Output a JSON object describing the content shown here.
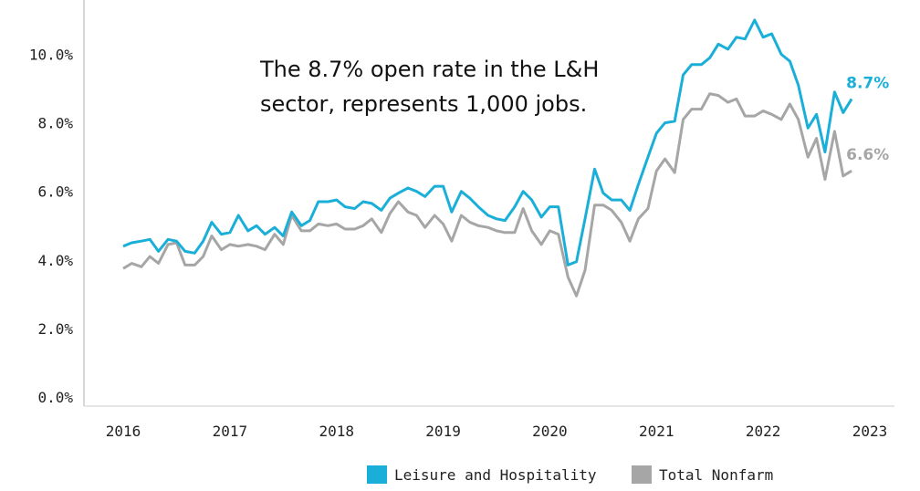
{
  "chart_data": {
    "type": "line",
    "title": "",
    "xlabel": "",
    "ylabel": "",
    "ylim": [
      0,
      11
    ],
    "xlim": [
      2016,
      2023
    ],
    "y_ticks": [
      "0.0%",
      "2.0%",
      "4.0%",
      "6.0%",
      "8.0%",
      "10.0%"
    ],
    "y_tick_values": [
      0,
      2,
      4,
      6,
      8,
      10
    ],
    "x_ticks": [
      "2016",
      "2017",
      "2018",
      "2019",
      "2020",
      "2021",
      "2022",
      "2023"
    ],
    "x_tick_values": [
      2016,
      2017,
      2018,
      2019,
      2020,
      2021,
      2022,
      2023
    ],
    "annotation": {
      "line1": "The 8.7% open rate in the L&H",
      "line2": "sector, represents 1,000 jobs."
    },
    "colors": {
      "leisure": "#1aafd8",
      "nonfarm": "#a6a6a6",
      "axis": "#cccccc"
    },
    "series": [
      {
        "name": "Leisure and Hospitality",
        "end_label": "8.7%",
        "values": [
          [
            2016.0,
            4.4
          ],
          [
            2016.08,
            4.5
          ],
          [
            2016.17,
            4.55
          ],
          [
            2016.25,
            4.6
          ],
          [
            2016.33,
            4.25
          ],
          [
            2016.42,
            4.6
          ],
          [
            2016.5,
            4.55
          ],
          [
            2016.58,
            4.25
          ],
          [
            2016.67,
            4.2
          ],
          [
            2016.75,
            4.55
          ],
          [
            2016.83,
            5.1
          ],
          [
            2016.92,
            4.75
          ],
          [
            2017.0,
            4.8
          ],
          [
            2017.08,
            5.3
          ],
          [
            2017.17,
            4.85
          ],
          [
            2017.25,
            5.0
          ],
          [
            2017.33,
            4.75
          ],
          [
            2017.42,
            4.95
          ],
          [
            2017.5,
            4.7
          ],
          [
            2017.58,
            5.4
          ],
          [
            2017.67,
            5.0
          ],
          [
            2017.75,
            5.15
          ],
          [
            2017.83,
            5.7
          ],
          [
            2017.92,
            5.7
          ],
          [
            2018.0,
            5.75
          ],
          [
            2018.08,
            5.55
          ],
          [
            2018.17,
            5.5
          ],
          [
            2018.25,
            5.7
          ],
          [
            2018.33,
            5.65
          ],
          [
            2018.42,
            5.45
          ],
          [
            2018.5,
            5.8
          ],
          [
            2018.58,
            5.95
          ],
          [
            2018.67,
            6.1
          ],
          [
            2018.75,
            6.0
          ],
          [
            2018.83,
            5.85
          ],
          [
            2018.92,
            6.15
          ],
          [
            2019.0,
            6.15
          ],
          [
            2019.08,
            5.4
          ],
          [
            2019.17,
            6.0
          ],
          [
            2019.25,
            5.8
          ],
          [
            2019.33,
            5.55
          ],
          [
            2019.42,
            5.3
          ],
          [
            2019.5,
            5.2
          ],
          [
            2019.58,
            5.15
          ],
          [
            2019.67,
            5.55
          ],
          [
            2019.75,
            6.0
          ],
          [
            2019.83,
            5.75
          ],
          [
            2019.92,
            5.25
          ],
          [
            2020.0,
            5.55
          ],
          [
            2020.08,
            5.55
          ],
          [
            2020.17,
            3.85
          ],
          [
            2020.25,
            3.95
          ],
          [
            2020.33,
            5.2
          ],
          [
            2020.42,
            6.65
          ],
          [
            2020.5,
            5.95
          ],
          [
            2020.58,
            5.75
          ],
          [
            2020.67,
            5.75
          ],
          [
            2020.75,
            5.45
          ],
          [
            2020.83,
            6.2
          ],
          [
            2020.92,
            7.0
          ],
          [
            2021.0,
            7.7
          ],
          [
            2021.08,
            8.0
          ],
          [
            2021.17,
            8.05
          ],
          [
            2021.25,
            9.4
          ],
          [
            2021.33,
            9.7
          ],
          [
            2021.42,
            9.7
          ],
          [
            2021.5,
            9.9
          ],
          [
            2021.58,
            10.3
          ],
          [
            2021.67,
            10.15
          ],
          [
            2021.75,
            10.5
          ],
          [
            2021.83,
            10.45
          ],
          [
            2021.92,
            11.0
          ],
          [
            2022.0,
            10.5
          ],
          [
            2022.08,
            10.6
          ],
          [
            2022.17,
            10.0
          ],
          [
            2022.25,
            9.8
          ],
          [
            2022.33,
            9.1
          ],
          [
            2022.42,
            7.85
          ],
          [
            2022.5,
            8.25
          ],
          [
            2022.58,
            7.15
          ],
          [
            2022.67,
            8.9
          ],
          [
            2022.75,
            8.3
          ],
          [
            2022.83,
            8.7
          ]
        ]
      },
      {
        "name": "Total Nonfarm",
        "end_label": "6.6%",
        "values": [
          [
            2016.0,
            3.75
          ],
          [
            2016.08,
            3.9
          ],
          [
            2016.17,
            3.8
          ],
          [
            2016.25,
            4.1
          ],
          [
            2016.33,
            3.9
          ],
          [
            2016.42,
            4.45
          ],
          [
            2016.5,
            4.5
          ],
          [
            2016.58,
            3.85
          ],
          [
            2016.67,
            3.85
          ],
          [
            2016.75,
            4.1
          ],
          [
            2016.83,
            4.7
          ],
          [
            2016.92,
            4.3
          ],
          [
            2017.0,
            4.45
          ],
          [
            2017.08,
            4.4
          ],
          [
            2017.17,
            4.45
          ],
          [
            2017.25,
            4.4
          ],
          [
            2017.33,
            4.3
          ],
          [
            2017.42,
            4.75
          ],
          [
            2017.5,
            4.45
          ],
          [
            2017.58,
            5.3
          ],
          [
            2017.67,
            4.85
          ],
          [
            2017.75,
            4.85
          ],
          [
            2017.83,
            5.05
          ],
          [
            2017.92,
            5.0
          ],
          [
            2018.0,
            5.05
          ],
          [
            2018.08,
            4.9
          ],
          [
            2018.17,
            4.9
          ],
          [
            2018.25,
            5.0
          ],
          [
            2018.33,
            5.2
          ],
          [
            2018.42,
            4.8
          ],
          [
            2018.5,
            5.35
          ],
          [
            2018.58,
            5.7
          ],
          [
            2018.67,
            5.4
          ],
          [
            2018.75,
            5.3
          ],
          [
            2018.83,
            4.95
          ],
          [
            2018.92,
            5.3
          ],
          [
            2019.0,
            5.05
          ],
          [
            2019.08,
            4.55
          ],
          [
            2019.17,
            5.3
          ],
          [
            2019.25,
            5.1
          ],
          [
            2019.33,
            5.0
          ],
          [
            2019.42,
            4.95
          ],
          [
            2019.5,
            4.85
          ],
          [
            2019.58,
            4.8
          ],
          [
            2019.67,
            4.8
          ],
          [
            2019.75,
            5.5
          ],
          [
            2019.83,
            4.85
          ],
          [
            2019.92,
            4.45
          ],
          [
            2020.0,
            4.85
          ],
          [
            2020.08,
            4.75
          ],
          [
            2020.17,
            3.5
          ],
          [
            2020.25,
            2.95
          ],
          [
            2020.33,
            3.7
          ],
          [
            2020.42,
            5.6
          ],
          [
            2020.5,
            5.6
          ],
          [
            2020.58,
            5.45
          ],
          [
            2020.67,
            5.1
          ],
          [
            2020.75,
            4.55
          ],
          [
            2020.83,
            5.2
          ],
          [
            2020.92,
            5.5
          ],
          [
            2021.0,
            6.6
          ],
          [
            2021.08,
            6.95
          ],
          [
            2021.17,
            6.55
          ],
          [
            2021.25,
            8.1
          ],
          [
            2021.33,
            8.4
          ],
          [
            2021.42,
            8.4
          ],
          [
            2021.5,
            8.85
          ],
          [
            2021.58,
            8.8
          ],
          [
            2021.67,
            8.6
          ],
          [
            2021.75,
            8.7
          ],
          [
            2021.83,
            8.2
          ],
          [
            2021.92,
            8.2
          ],
          [
            2022.0,
            8.35
          ],
          [
            2022.08,
            8.25
          ],
          [
            2022.17,
            8.1
          ],
          [
            2022.25,
            8.55
          ],
          [
            2022.33,
            8.1
          ],
          [
            2022.42,
            7.0
          ],
          [
            2022.5,
            7.55
          ],
          [
            2022.58,
            6.35
          ],
          [
            2022.67,
            7.75
          ],
          [
            2022.75,
            6.45
          ],
          [
            2022.83,
            6.6
          ]
        ]
      }
    ],
    "legend": [
      "Leisure and Hospitality",
      "Total Nonfarm"
    ],
    "legend_position": "bottom-right"
  }
}
